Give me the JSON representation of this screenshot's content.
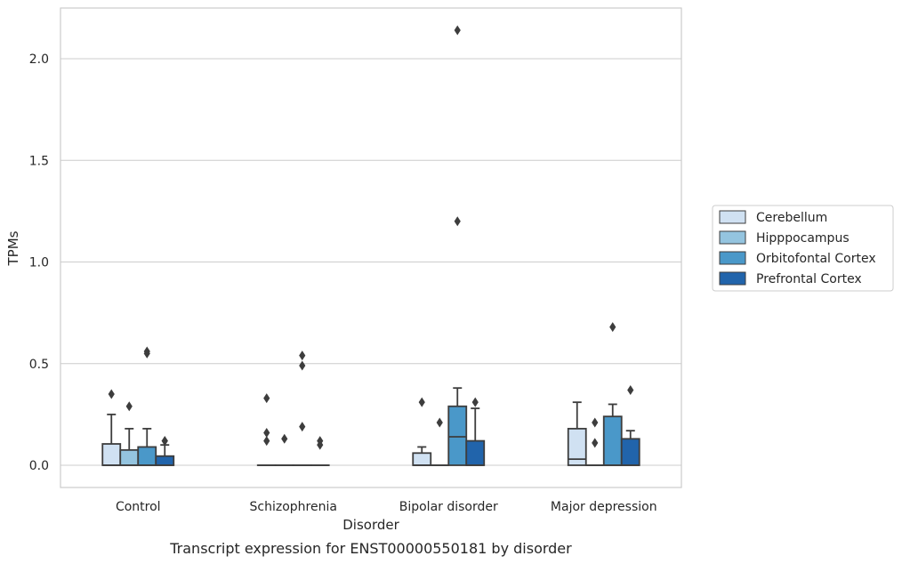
{
  "chart_data": {
    "type": "box",
    "xlabel": "Disorder",
    "ylabel": "TPMs",
    "caption": "Transcript expression for ENST00000550181 by disorder",
    "ylim": [
      -0.1,
      2.25
    ],
    "yticks": [
      "0.0",
      "0.5",
      "1.0",
      "1.5",
      "2.0"
    ],
    "grid": "horizontal",
    "legend_position": "right",
    "categories": [
      "Control",
      "Schizophrenia",
      "Bipolar disorder",
      "Major depression"
    ],
    "series": [
      {
        "name": "Cerebellum",
        "color": "#d0e1f2",
        "boxes": [
          {
            "q1": 0,
            "median": 0,
            "q3": 0.105,
            "whisker_low": 0,
            "whisker_high": 0.25,
            "outliers": [
              0.35
            ]
          },
          {
            "q1": 0,
            "median": 0,
            "q3": 0,
            "whisker_low": 0,
            "whisker_high": 0,
            "outliers": [
              0.33,
              0.16,
              0.12
            ]
          },
          {
            "q1": 0,
            "median": 0,
            "q3": 0.06,
            "whisker_low": 0,
            "whisker_high": 0.09,
            "outliers": [
              0.31
            ]
          },
          {
            "q1": 0,
            "median": 0.03,
            "q3": 0.18,
            "whisker_low": 0,
            "whisker_high": 0.31,
            "outliers": []
          }
        ]
      },
      {
        "name": "Hipppocampus",
        "color": "#94c4df",
        "boxes": [
          {
            "q1": 0,
            "median": 0,
            "q3": 0.075,
            "whisker_low": 0,
            "whisker_high": 0.18,
            "outliers": [
              0.29
            ]
          },
          {
            "q1": 0,
            "median": 0,
            "q3": 0,
            "whisker_low": 0,
            "whisker_high": 0,
            "outliers": [
              0.13
            ]
          },
          {
            "q1": 0,
            "median": 0,
            "q3": 0,
            "whisker_low": 0,
            "whisker_high": 0,
            "outliers": [
              0.21
            ]
          },
          {
            "q1": 0,
            "median": 0,
            "q3": 0,
            "whisker_low": 0,
            "whisker_high": 0,
            "outliers": [
              0.21,
              0.11
            ]
          }
        ]
      },
      {
        "name": "Orbitofontal Cortex",
        "color": "#4a98c9",
        "boxes": [
          {
            "q1": 0,
            "median": 0,
            "q3": 0.09,
            "whisker_low": 0,
            "whisker_high": 0.18,
            "outliers": [
              0.56,
              0.55
            ]
          },
          {
            "q1": 0,
            "median": 0,
            "q3": 0,
            "whisker_low": 0,
            "whisker_high": 0,
            "outliers": [
              0.54,
              0.49,
              0.19
            ]
          },
          {
            "q1": 0,
            "median": 0.14,
            "q3": 0.29,
            "whisker_low": 0,
            "whisker_high": 0.38,
            "outliers": [
              2.14,
              1.2
            ]
          },
          {
            "q1": 0,
            "median": 0,
            "q3": 0.24,
            "whisker_low": 0,
            "whisker_high": 0.3,
            "outliers": [
              0.68
            ]
          }
        ]
      },
      {
        "name": "Prefrontal Cortex",
        "color": "#2164ab",
        "boxes": [
          {
            "q1": 0,
            "median": 0,
            "q3": 0.045,
            "whisker_low": 0,
            "whisker_high": 0.1,
            "outliers": [
              0.12,
              0.12
            ]
          },
          {
            "q1": 0,
            "median": 0,
            "q3": 0,
            "whisker_low": 0,
            "whisker_high": 0,
            "outliers": [
              0.12,
              0.1
            ]
          },
          {
            "q1": 0,
            "median": 0,
            "q3": 0.12,
            "whisker_low": 0,
            "whisker_high": 0.28,
            "outliers": [
              0.31
            ]
          },
          {
            "q1": 0,
            "median": 0,
            "q3": 0.13,
            "whisker_low": 0,
            "whisker_high": 0.17,
            "outliers": [
              0.37
            ]
          }
        ]
      }
    ]
  }
}
